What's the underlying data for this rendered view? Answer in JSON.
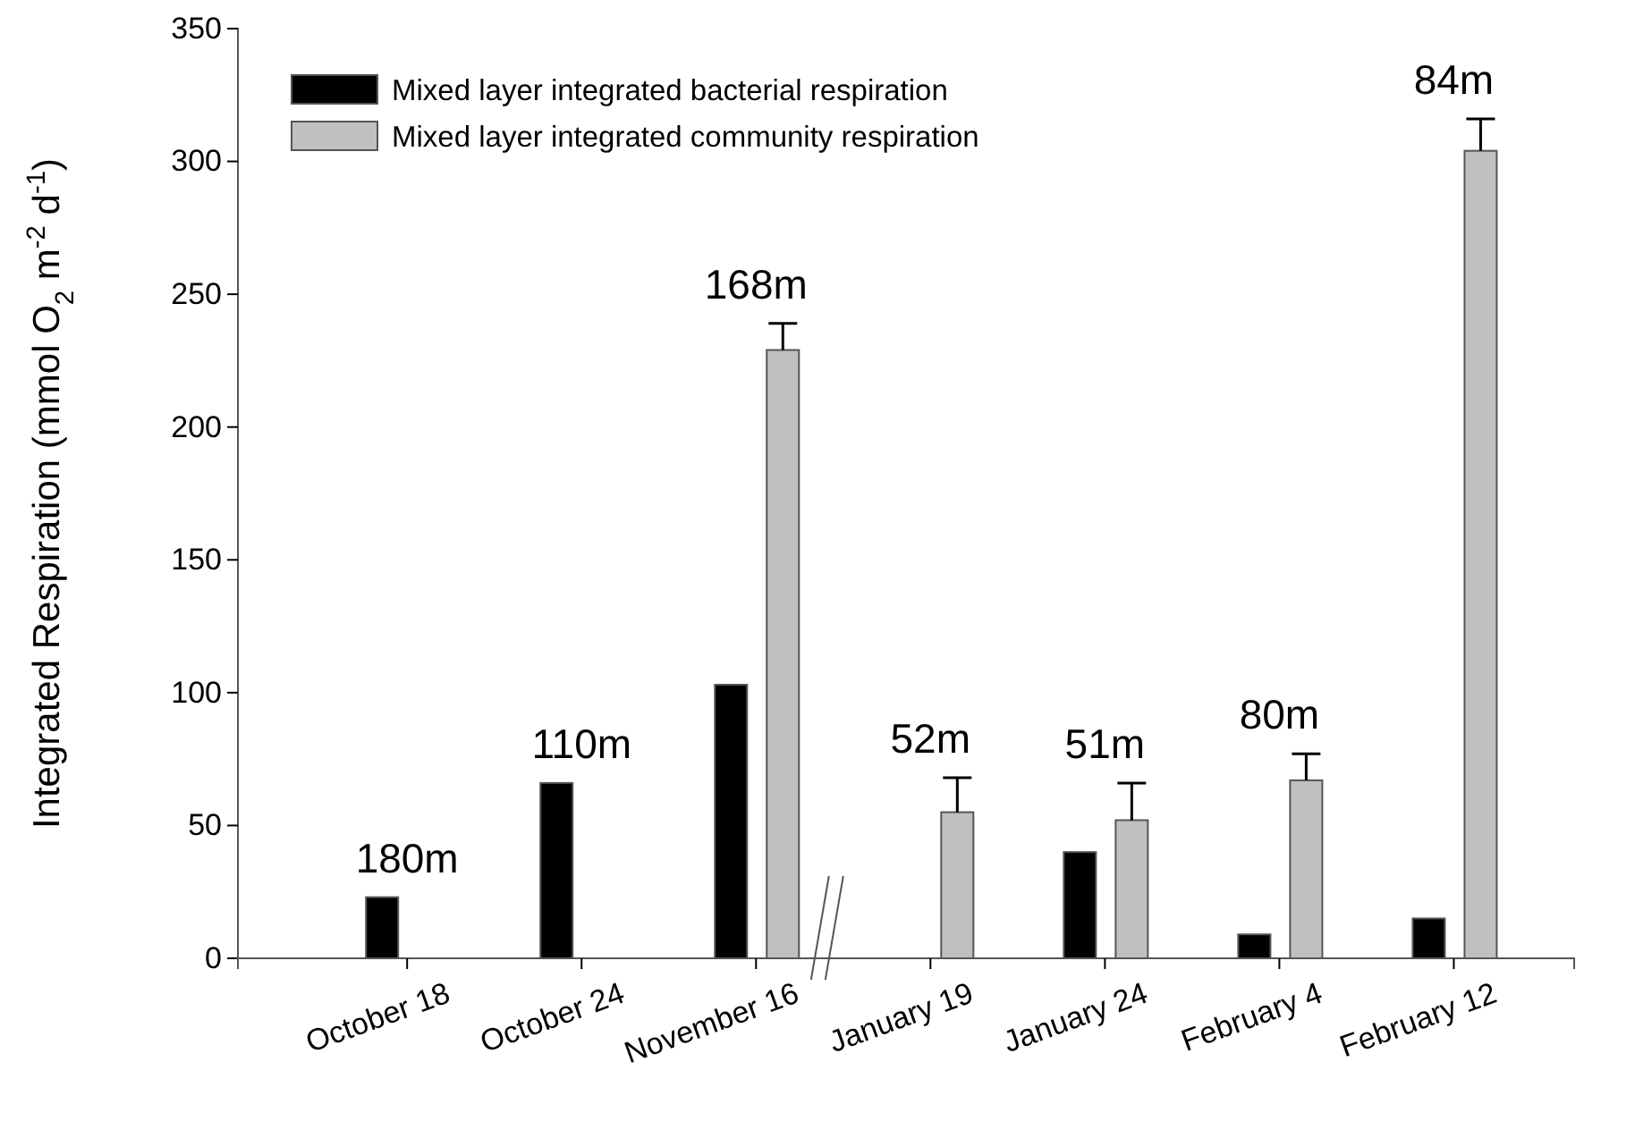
{
  "chart_data": {
    "type": "bar",
    "ylabel": "Integrated Respiration (mmol O$_{2}$ m$^{-2}$ d$^{-1}$)",
    "categories": [
      "October 18",
      "October 24",
      "November 16",
      "January 19",
      "January 24",
      "February 4",
      "February 12"
    ],
    "series": [
      {
        "name": "Mixed layer integrated bacterial respiration",
        "color": "#000000",
        "values": [
          23,
          66,
          103,
          null,
          40,
          9,
          15
        ]
      },
      {
        "name": "Mixed layer integrated community respiration",
        "color": "#c0c0c0",
        "values": [
          null,
          null,
          229,
          55,
          52,
          67,
          304
        ],
        "errors": [
          null,
          null,
          10,
          13,
          14,
          10,
          12
        ]
      }
    ],
    "ylim": [
      0,
      350
    ],
    "yticks": [
      0,
      50,
      100,
      150,
      200,
      250,
      300,
      350
    ],
    "legend": "top left",
    "annotations": [
      "180m",
      "110m",
      "168m",
      "52m",
      "51m",
      "80m",
      "84m"
    ]
  }
}
